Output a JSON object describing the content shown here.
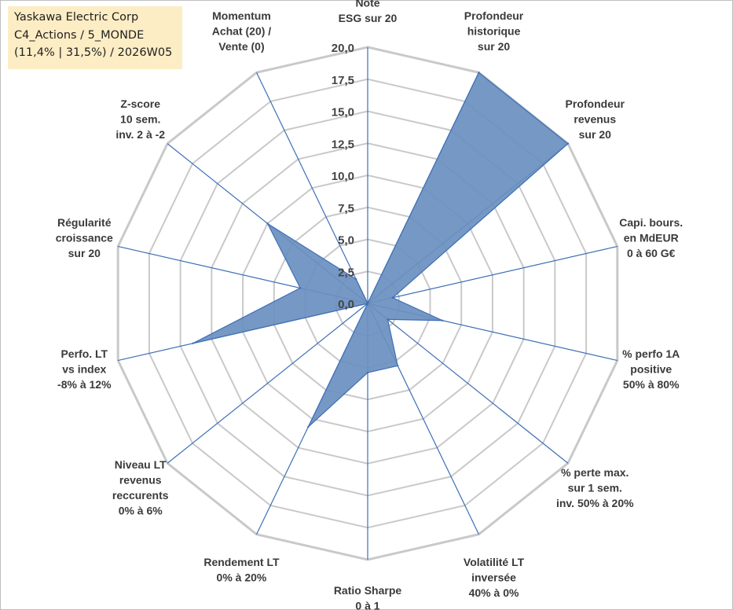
{
  "title_box": {
    "line1": "Yaskawa Electric Corp",
    "line2": "C4_Actions / 5_MONDE",
    "line3": "(11,4% | 31,5%) / 2026W05"
  },
  "chart_data": {
    "type": "radar",
    "title": "Yaskawa Electric Corp",
    "axes": [
      [
        "Note",
        "ESG sur 20"
      ],
      [
        "Profondeur",
        "historique",
        "sur 20"
      ],
      [
        "Profondeur",
        "revenus",
        "sur 20"
      ],
      [
        "Capi. bours.",
        "en MdEUR",
        "0 à 60 G€"
      ],
      [
        "% perfo 1A",
        "positive",
        "50% à 80%"
      ],
      [
        "% perte max.",
        "sur 1 sem.",
        "inv. 50% à 20%"
      ],
      [
        "Volatilité LT",
        "inversée",
        "40% à 0%"
      ],
      [
        "Ratio Sharpe",
        "0 à 1"
      ],
      [
        "Rendement LT",
        "0% à 20%"
      ],
      [
        "Niveau LT",
        "revenus",
        "reccurents",
        "0% à 6%"
      ],
      [
        "Perfo. LT",
        "vs index",
        "-8% à 12%"
      ],
      [
        "Régularité",
        "croissance",
        "sur 20"
      ],
      [
        "Z-score",
        "10 sem.",
        "inv. 2 à -2"
      ],
      [
        "Momentum",
        "Achat (20) /",
        "Vente (0)"
      ]
    ],
    "series": [
      {
        "name": "Yaskawa Electric Corp",
        "values": [
          0,
          20,
          20,
          2,
          6,
          2,
          5.4,
          5.4,
          10.7,
          0,
          14,
          5.4,
          10,
          2.1
        ],
        "color": "#6a8fbf"
      }
    ],
    "rlim": [
      0,
      20
    ],
    "ticks": [
      "0,0",
      "2,5",
      "5,0",
      "7,5",
      "10,0",
      "12,5",
      "15,0",
      "17,5",
      "20,0"
    ],
    "grid": true
  }
}
